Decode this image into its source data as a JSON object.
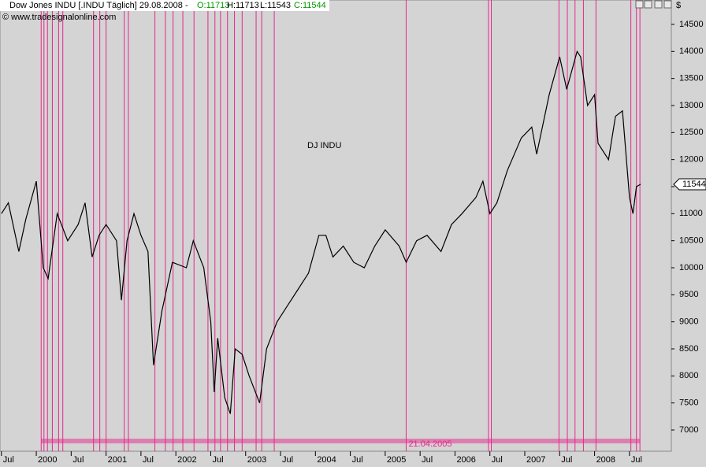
{
  "header": {
    "symbol": "Dow Jones INDU [.INDU  Täglich] 29.08.2008 -",
    "open": "O:11713",
    "high": "H:11713",
    "low": "L:11543",
    "close": "C:11544",
    "copyright": "© www.tradesignalonline.com"
  },
  "chart_data": {
    "type": "line",
    "currency": "$",
    "xlim": [
      1999.48,
      2009.1
    ],
    "ylim": [
      6607,
      14951
    ],
    "xticks": [
      {
        "value": 1999.5,
        "label": "Jul"
      },
      {
        "value": 2000,
        "label": "2000"
      },
      {
        "value": 2000.5,
        "label": "Jul"
      },
      {
        "value": 2001,
        "label": "2001"
      },
      {
        "value": 2001.5,
        "label": "Jul"
      },
      {
        "value": 2002,
        "label": "2002"
      },
      {
        "value": 2002.5,
        "label": "Jul"
      },
      {
        "value": 2003,
        "label": "2003"
      },
      {
        "value": 2003.5,
        "label": "Jul"
      },
      {
        "value": 2004,
        "label": "2004"
      },
      {
        "value": 2004.5,
        "label": "Jul"
      },
      {
        "value": 2005,
        "label": "2005"
      },
      {
        "value": 2005.5,
        "label": "Jul"
      },
      {
        "value": 2006,
        "label": "2006"
      },
      {
        "value": 2006.5,
        "label": "Jul"
      },
      {
        "value": 2007,
        "label": "2007"
      },
      {
        "value": 2007.5,
        "label": "Jul"
      },
      {
        "value": 2008,
        "label": "2008"
      },
      {
        "value": 2008.5,
        "label": "Jul"
      }
    ],
    "yticks": [
      7000,
      7500,
      8000,
      8500,
      9000,
      9500,
      10000,
      10500,
      11000,
      11500,
      12000,
      12500,
      13000,
      13500,
      14000,
      14500
    ],
    "series": [
      {
        "name": "DJ INDU",
        "color": "#000000",
        "x": [
          1999.5,
          1999.6,
          1999.75,
          1999.85,
          2000.0,
          2000.1,
          2000.17,
          2000.3,
          2000.45,
          2000.6,
          2000.7,
          2000.8,
          2000.9,
          2001.0,
          2001.15,
          2001.22,
          2001.3,
          2001.4,
          2001.5,
          2001.6,
          2001.68,
          2001.8,
          2001.95,
          2002.15,
          2002.25,
          2002.4,
          2002.5,
          2002.55,
          2002.6,
          2002.7,
          2002.78,
          2002.85,
          2002.95,
          2003.05,
          2003.2,
          2003.3,
          2003.45,
          2003.6,
          2003.75,
          2003.9,
          2004.05,
          2004.15,
          2004.25,
          2004.4,
          2004.55,
          2004.7,
          2004.85,
          2005.0,
          2005.2,
          2005.3,
          2005.45,
          2005.6,
          2005.8,
          2005.95,
          2006.1,
          2006.3,
          2006.4,
          2006.5,
          2006.6,
          2006.75,
          2006.95,
          2007.1,
          2007.17,
          2007.35,
          2007.5,
          2007.6,
          2007.75,
          2007.8,
          2007.9,
          2008.0,
          2008.05,
          2008.2,
          2008.3,
          2008.4,
          2008.5,
          2008.55,
          2008.6,
          2008.66
        ],
        "values": [
          11000,
          11200,
          10300,
          10900,
          11600,
          10000,
          9800,
          11000,
          10500,
          10800,
          11200,
          10200,
          10600,
          10800,
          10500,
          9400,
          10500,
          11000,
          10600,
          10300,
          8200,
          9200,
          10100,
          10000,
          10500,
          10000,
          9000,
          7700,
          8700,
          7600,
          7300,
          8500,
          8400,
          8000,
          7500,
          8500,
          9000,
          9300,
          9600,
          9900,
          10600,
          10600,
          10200,
          10400,
          10100,
          10000,
          10400,
          10700,
          10400,
          10100,
          10500,
          10600,
          10300,
          10800,
          11000,
          11300,
          11600,
          11000,
          11200,
          11800,
          12400,
          12600,
          12100,
          13200,
          13900,
          13300,
          14000,
          13900,
          13000,
          13200,
          12300,
          12000,
          12800,
          12900,
          11300,
          11000,
          11500,
          11544
        ]
      }
    ],
    "last_value": 11544,
    "signals": {
      "color": "#e6288c",
      "x": [
        2000.07,
        2000.11,
        2000.16,
        2000.23,
        2000.32,
        2000.38,
        2000.82,
        2000.91,
        2001.0,
        2001.26,
        2001.32,
        2001.7,
        2001.85,
        2001.96,
        2002.1,
        2002.26,
        2002.46,
        2002.56,
        2002.64,
        2002.74,
        2002.84,
        2002.95,
        2003.15,
        2003.23,
        2003.41,
        2005.3,
        2006.48,
        2006.52,
        2007.49,
        2007.61,
        2007.72,
        2007.84,
        2008.02,
        2008.52,
        2008.6,
        2008.65
      ],
      "label_x": 2005.3,
      "label": "21.04.2005"
    }
  }
}
